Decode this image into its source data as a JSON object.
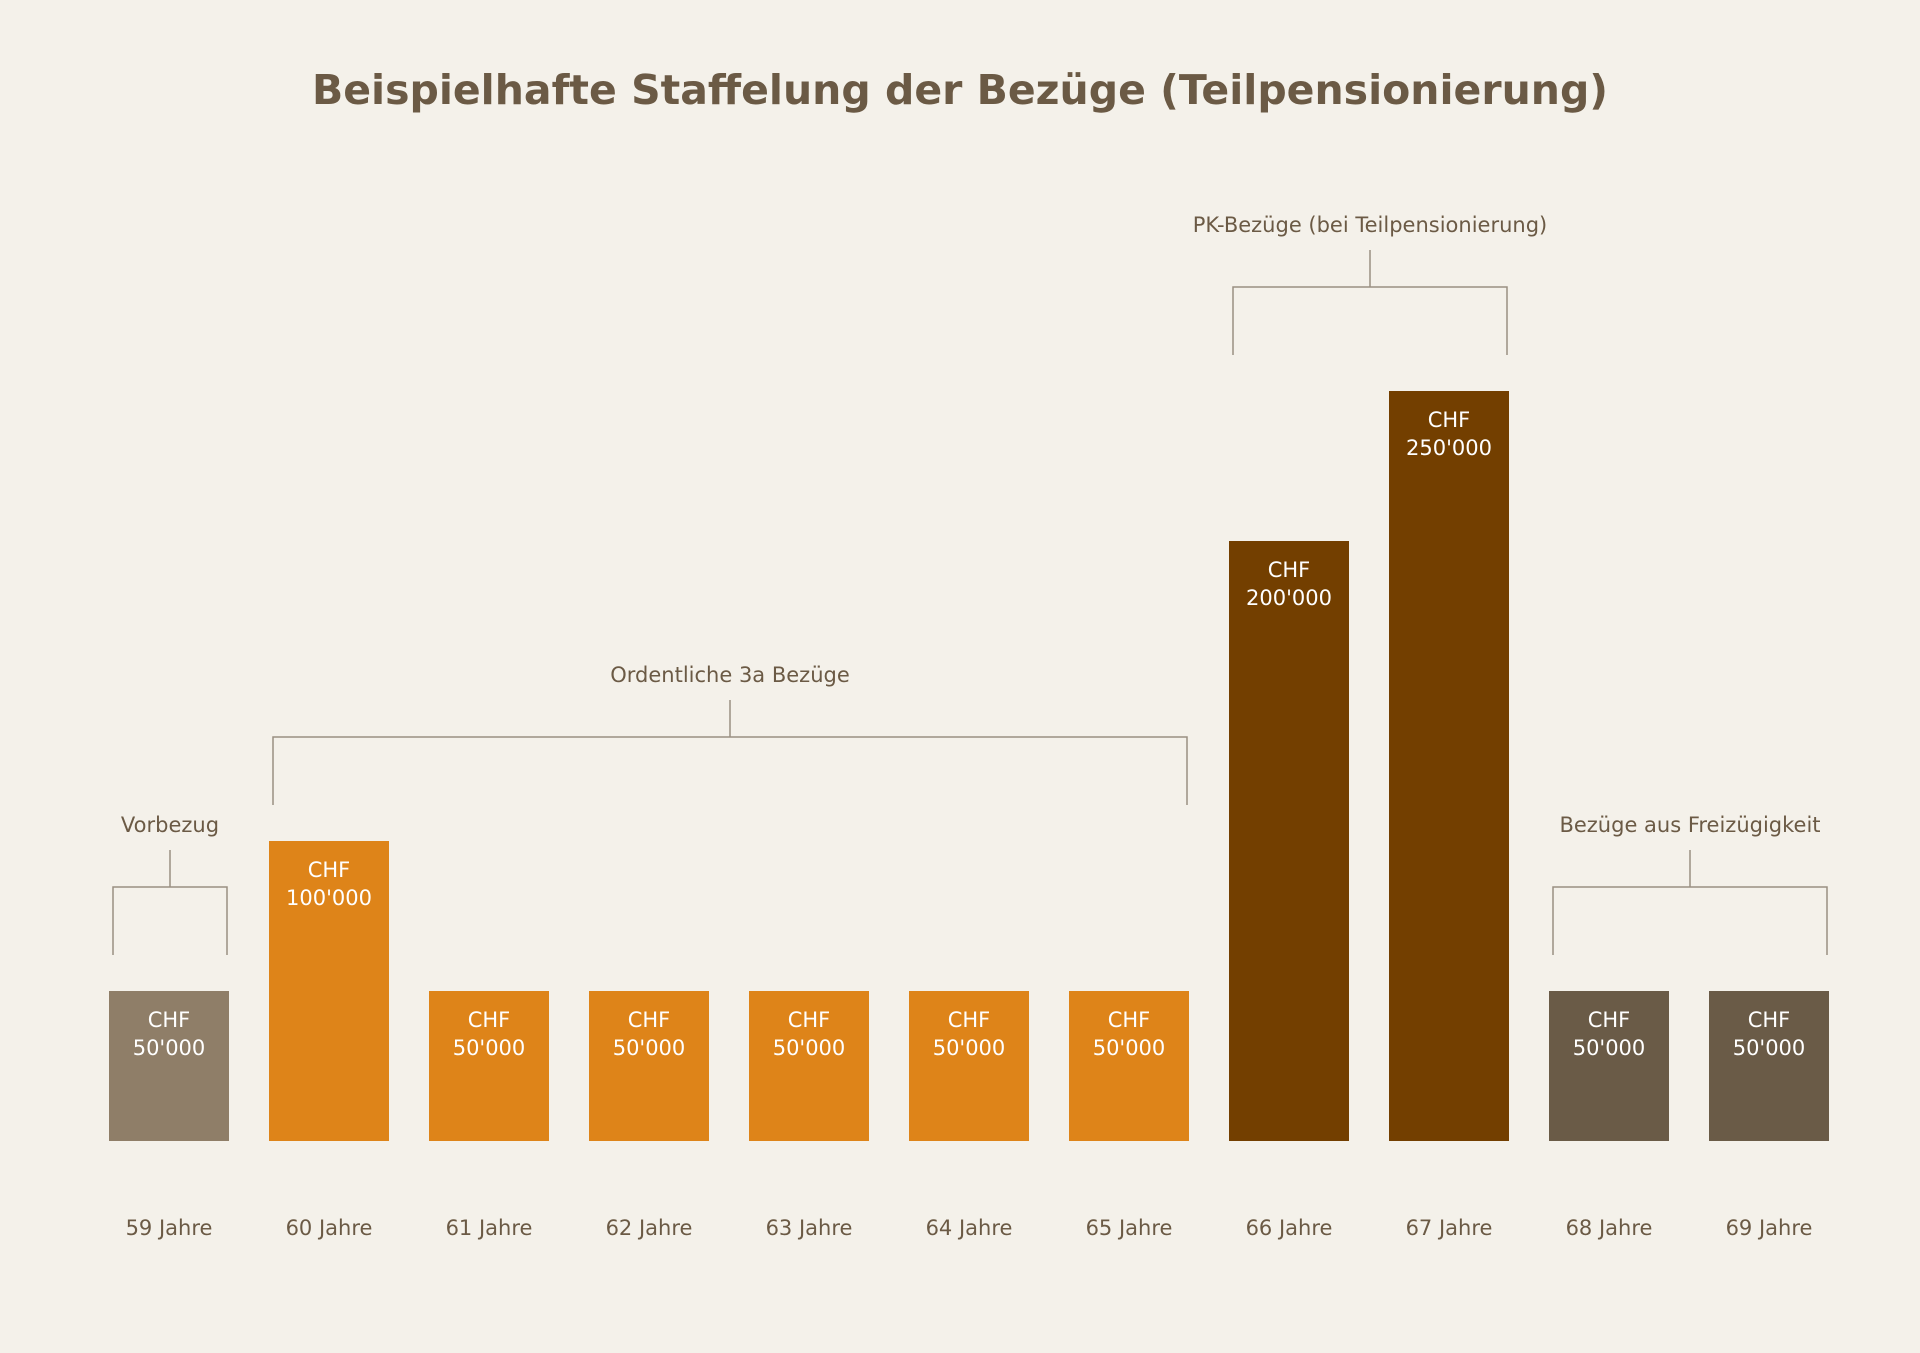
{
  "colors": {
    "background": "#f4f1ea",
    "text": "#6b5a45",
    "bracket": "#9a8f82",
    "bar_label": "#ffffff",
    "vorbezug": "#8f7e68",
    "ordentlich": "#de8419",
    "pk": "#733f00",
    "freizuegigkeit": "#6a5b47"
  },
  "chart_data": {
    "type": "bar",
    "title": "Beispielhafte Staffelung der Bezüge (Teilpensionierung)",
    "categories": [
      "59 Jahre",
      "60 Jahre",
      "61 Jahre",
      "62 Jahre",
      "63 Jahre",
      "64 Jahre",
      "65 Jahre",
      "66 Jahre",
      "67 Jahre",
      "68 Jahre",
      "69 Jahre"
    ],
    "values": [
      50000,
      100000,
      50000,
      50000,
      50000,
      50000,
      50000,
      200000,
      250000,
      50000,
      50000
    ],
    "value_labels": [
      [
        "CHF",
        "50'000"
      ],
      [
        "CHF",
        "100'000"
      ],
      [
        "CHF",
        "50'000"
      ],
      [
        "CHF",
        "50'000"
      ],
      [
        "CHF",
        "50'000"
      ],
      [
        "CHF",
        "50'000"
      ],
      [
        "CHF",
        "50'000"
      ],
      [
        "CHF",
        "200'000"
      ],
      [
        "CHF",
        "250'000"
      ],
      [
        "CHF",
        "50'000"
      ],
      [
        "CHF",
        "50'000"
      ]
    ],
    "bar_groups": [
      "vorbezug",
      "ordentlich",
      "ordentlich",
      "ordentlich",
      "ordentlich",
      "ordentlich",
      "ordentlich",
      "pk",
      "pk",
      "freizuegigkeit",
      "freizuegigkeit"
    ],
    "groups": [
      {
        "key": "vorbezug",
        "label": "Vorbezug",
        "first": 0,
        "last": 0
      },
      {
        "key": "ordentlich",
        "label": "Ordentliche 3a Bezüge",
        "first": 1,
        "last": 6
      },
      {
        "key": "pk",
        "label": "PK-Bezüge (bei Teilpensionierung)",
        "first": 7,
        "last": 8
      },
      {
        "key": "freizuegigkeit",
        "label": "Bezüge aus Freizügigkeit",
        "first": 9,
        "last": 10
      }
    ],
    "xlabel": "",
    "ylabel": "",
    "ylim": [
      0,
      250000
    ],
    "grid": false,
    "legend": "none"
  }
}
